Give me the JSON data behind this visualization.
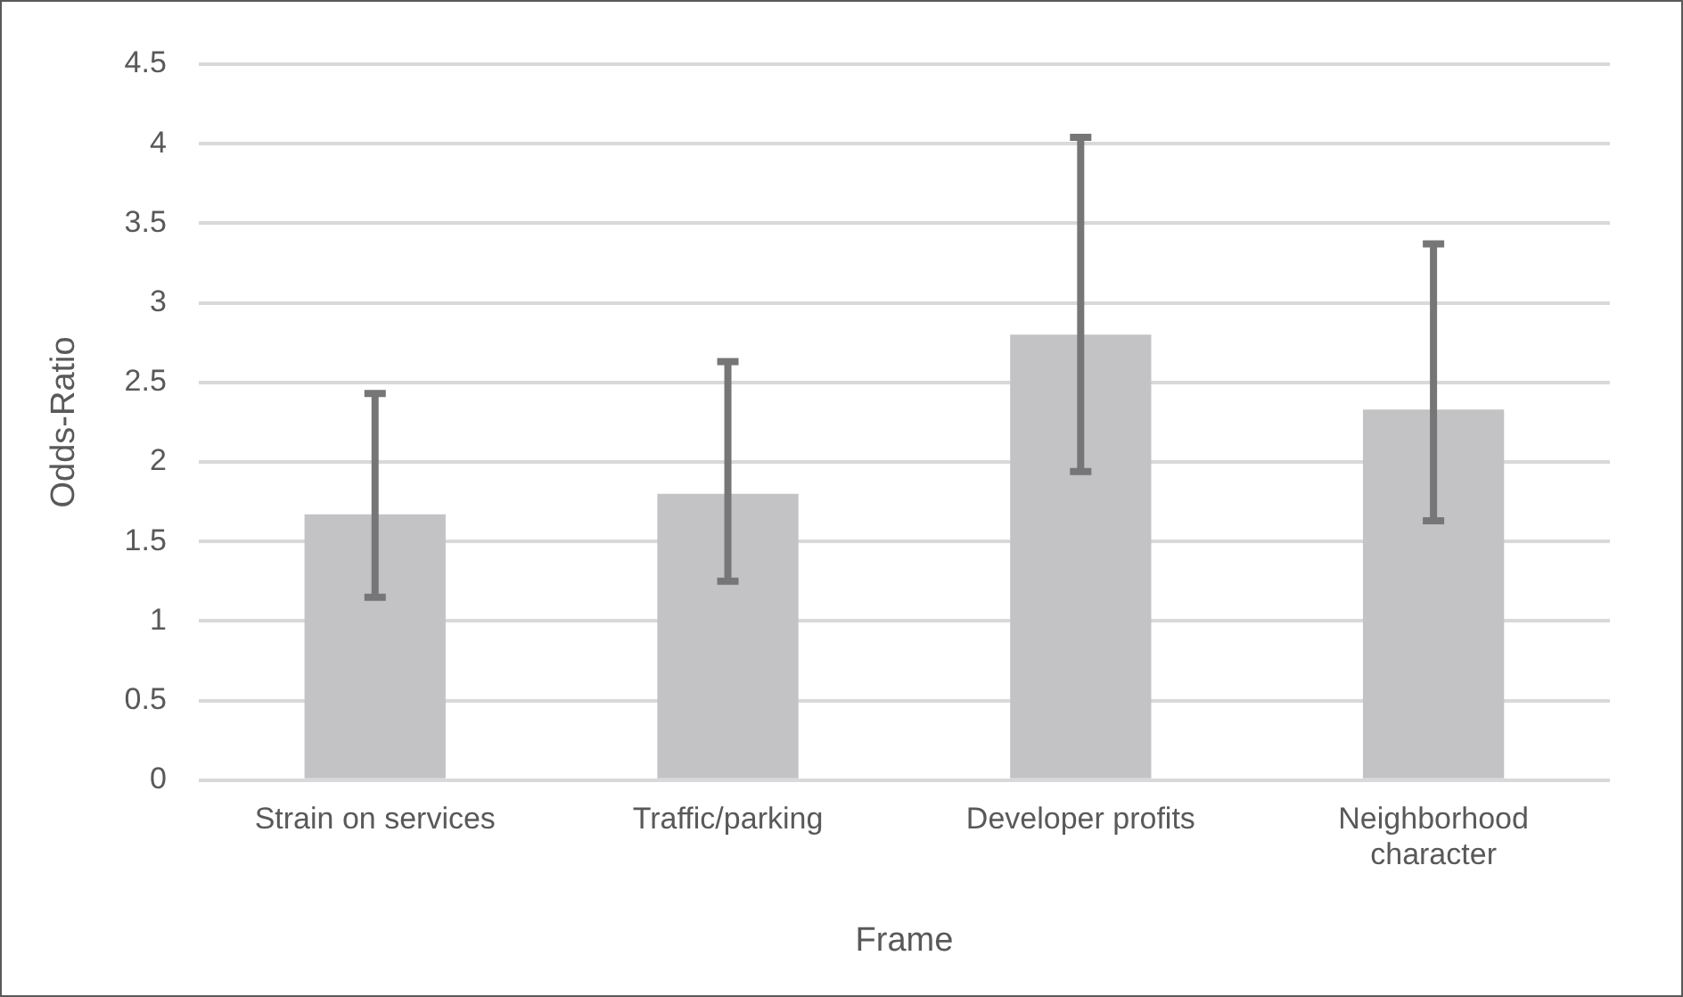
{
  "chart_data": {
    "type": "bar",
    "xlabel": "Frame",
    "ylabel": "Odds-Ratio",
    "categories": [
      "Strain on services",
      "Traffic/parking",
      "Developer profits",
      "Neighborhood character"
    ],
    "values": [
      1.67,
      1.8,
      2.8,
      2.33
    ],
    "color": "#c3c3c6",
    "errors": [
      [
        1.15,
        2.43
      ],
      [
        1.25,
        2.63
      ],
      [
        1.94,
        4.04
      ],
      [
        1.63,
        3.37
      ]
    ],
    "ylim": [
      0,
      4.5
    ],
    "yticks": [
      0,
      0.5,
      1,
      1.5,
      2,
      2.5,
      3,
      3.5,
      4,
      4.5
    ],
    "grid": "y",
    "legend": false
  }
}
